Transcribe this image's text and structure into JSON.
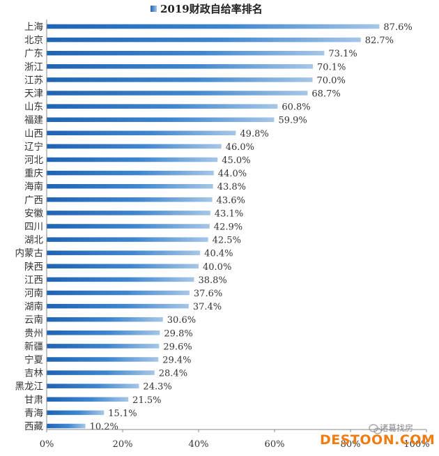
{
  "chart_data": {
    "type": "bar",
    "orientation": "horizontal",
    "legend": "2019财政自给率排名",
    "legend_position": "top",
    "categories": [
      "上海",
      "北京",
      "广东",
      "浙江",
      "江苏",
      "天津",
      "山东",
      "福建",
      "山西",
      "辽宁",
      "河北",
      "重庆",
      "海南",
      "广西",
      "安徽",
      "四川",
      "湖北",
      "内蒙古",
      "陕西",
      "江西",
      "河南",
      "湖南",
      "云南",
      "贵州",
      "新疆",
      "宁夏",
      "吉林",
      "黑龙江",
      "甘肃",
      "青海",
      "西藏"
    ],
    "values": [
      87.6,
      82.7,
      73.1,
      70.1,
      70.0,
      68.7,
      60.8,
      59.9,
      49.8,
      46.0,
      45.0,
      44.0,
      43.8,
      43.6,
      43.1,
      42.9,
      42.5,
      40.4,
      40.0,
      38.8,
      37.6,
      37.4,
      30.6,
      29.8,
      29.6,
      29.4,
      28.4,
      24.3,
      21.5,
      15.1,
      10.2
    ],
    "value_labels": [
      "87.6%",
      "82.7%",
      "73.1%",
      "70.1%",
      "70.0%",
      "68.7%",
      "60.8%",
      "59.9%",
      "49.8%",
      "46.0%",
      "45.0%",
      "44.0%",
      "43.8%",
      "43.6%",
      "43.1%",
      "42.9%",
      "42.5%",
      "40.4%",
      "40.0%",
      "38.8%",
      "37.6%",
      "37.4%",
      "30.6%",
      "29.8%",
      "29.6%",
      "29.4%",
      "28.4%",
      "24.3%",
      "21.5%",
      "15.1%",
      "10.2%"
    ],
    "xlim": [
      0,
      100
    ],
    "xticks": [
      "0%",
      "20%",
      "40%",
      "60%",
      "80%",
      "100%"
    ],
    "grid": false,
    "bar_color": "#2e74c0"
  },
  "watermarks": {
    "brand": "DESTOON.COM",
    "wechat": "诸葛找房"
  }
}
